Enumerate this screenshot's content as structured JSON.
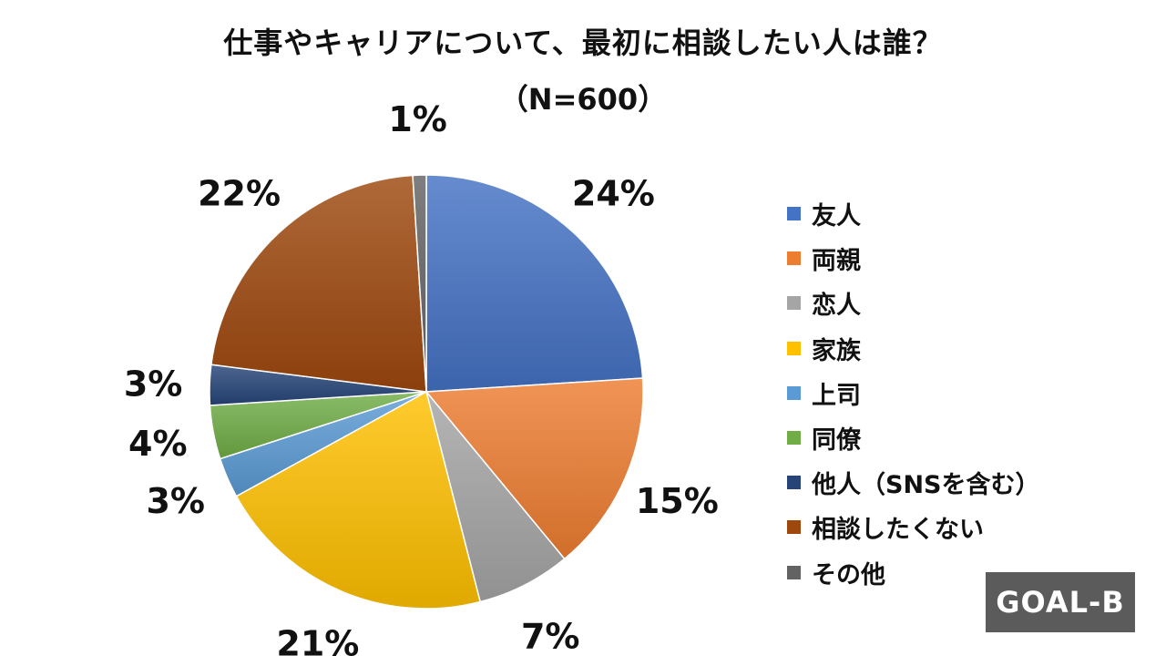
{
  "chart_data": {
    "type": "pie",
    "title": "仕事やキャリアについて、最初に相談したい人は誰？",
    "subtitle": "（N=600）",
    "categories": [
      "友人",
      "両親",
      "恋人",
      "家族",
      "上司",
      "同僚",
      "他人（SNSを含む）",
      "相談したくない",
      "その他"
    ],
    "values": [
      24,
      15,
      7,
      21,
      3,
      4,
      3,
      22,
      1
    ],
    "labels": [
      "24%",
      "15%",
      "7%",
      "21%",
      "3%",
      "4%",
      "3%",
      "22%",
      "1%"
    ],
    "colors": [
      "#4472C4",
      "#ED7D31",
      "#A5A5A5",
      "#FFC000",
      "#5B9BD5",
      "#70AD47",
      "#264478",
      "#9E480E",
      "#636363"
    ],
    "legend_position": "right"
  },
  "logo": {
    "text": "GOAL-B"
  }
}
